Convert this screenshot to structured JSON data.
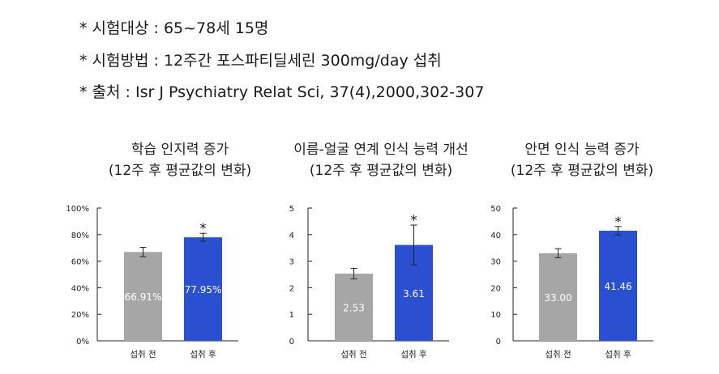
{
  "info": {
    "line1": "* 시험대상 : 65~78세 15명",
    "line2": "* 시험방법 : 12주간 포스파티딜세린 300mg/day 섭취",
    "line3": "* 출처 : Isr J Psychiatry Relat Sci, 37(4),2000,302-307"
  },
  "colors": {
    "before": "#a6a6a6",
    "after": "#2b4fd1"
  },
  "chart_data": [
    {
      "type": "bar",
      "title_line1": "학습 인지력 증가",
      "title_line2": "(12주 후 평균값의 변화)",
      "categories": [
        "섭취 전",
        "섭취 후"
      ],
      "values": [
        66.91,
        77.95
      ],
      "value_labels": [
        "66.91%",
        "77.95%"
      ],
      "error": [
        3.5,
        3.0
      ],
      "significance": [
        "",
        "*"
      ],
      "ylim": [
        0,
        100
      ],
      "yticks": [
        0,
        20,
        40,
        60,
        80,
        100
      ],
      "ytick_labels": [
        "0%",
        "20%",
        "40%",
        "60%",
        "80%",
        "100%"
      ]
    },
    {
      "type": "bar",
      "title_line1": "이름-얼굴 연계 인식 능력 개선",
      "title_line2": "(12주 후 평균값의 변화)",
      "categories": [
        "섭취 전",
        "섭취 후"
      ],
      "values": [
        2.53,
        3.61
      ],
      "value_labels": [
        "2.53",
        "3.61"
      ],
      "error": [
        0.2,
        0.75
      ],
      "significance": [
        "",
        "*"
      ],
      "ylim": [
        0,
        5
      ],
      "yticks": [
        0,
        1,
        2,
        3,
        4,
        5
      ],
      "ytick_labels": [
        "0",
        "1",
        "2",
        "3",
        "4",
        "5"
      ]
    },
    {
      "type": "bar",
      "title_line1": "안면 인식 능력 증가",
      "title_line2": "(12주 후 평균값의 변화)",
      "categories": [
        "섭취 전",
        "섭취 후"
      ],
      "values": [
        33.0,
        41.46
      ],
      "value_labels": [
        "33.00",
        "41.46"
      ],
      "error": [
        1.7,
        1.6
      ],
      "significance": [
        "",
        "*"
      ],
      "ylim": [
        0,
        50
      ],
      "yticks": [
        0,
        10,
        20,
        30,
        40,
        50
      ],
      "ytick_labels": [
        "0",
        "10",
        "20",
        "30",
        "40",
        "50"
      ]
    }
  ]
}
